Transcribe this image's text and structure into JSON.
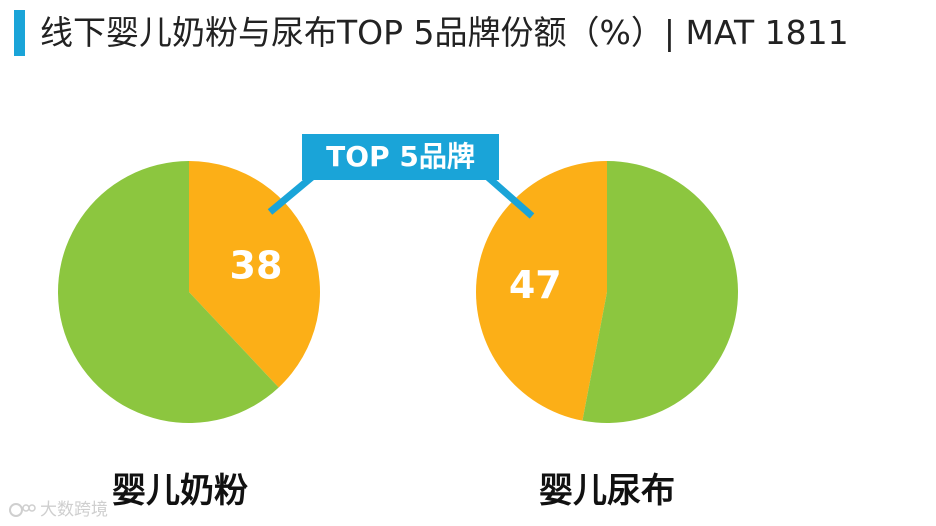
{
  "header": {
    "title": "线下婴儿奶粉与尿布TOP 5品牌份额（%）| MAT 1811",
    "accent_color": "#1aa4d8"
  },
  "callout": {
    "label": "TOP 5品牌",
    "color": "#1aa4d8"
  },
  "chart_data": [
    {
      "type": "pie",
      "title": "婴儿奶粉",
      "slices": [
        {
          "name": "",
          "value": 38,
          "color": "#fcaf17",
          "label": "38"
        },
        {
          "name": "",
          "value": 62,
          "color": "#8cc63f",
          "label": ""
        }
      ]
    },
    {
      "type": "pie",
      "title": "婴儿尿布",
      "slices": [
        {
          "name": "",
          "value": 47,
          "color": "#fcaf17",
          "label": "47"
        },
        {
          "name": "",
          "value": 53,
          "color": "#8cc63f",
          "label": ""
        }
      ]
    }
  ],
  "watermark": {
    "text": "大数跨境",
    "icon": "logo-icon"
  }
}
